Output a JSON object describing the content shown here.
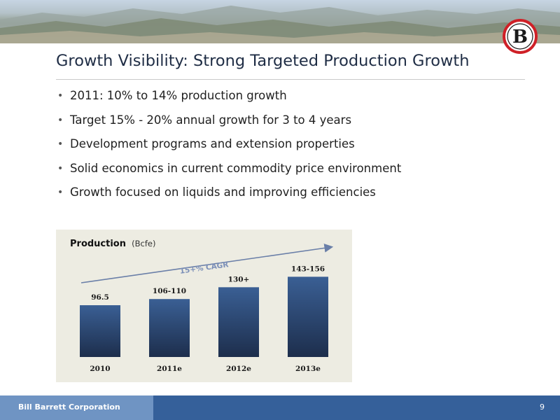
{
  "slide": {
    "title": "Growth Visibility: Strong Targeted Production Growth",
    "bullets": [
      "2011: 10% to 14% production growth",
      "Target 15% - 20% annual growth for 3 to 4 years",
      "Development programs and extension properties",
      "Solid economics in current commodity price environment",
      "Growth focused on liquids and improving efficiencies"
    ],
    "logo_letter": "B"
  },
  "chart_data": {
    "type": "bar",
    "title": "Production",
    "unit": "(Bcfe)",
    "categories": [
      "2010",
      "2011e",
      "2012e",
      "2013e"
    ],
    "values": [
      96.5,
      108,
      130,
      149.5
    ],
    "data_labels": [
      "96.5",
      "106-110",
      "130+",
      "143-156"
    ],
    "ylim": [
      0,
      160
    ],
    "annotation": "15+% CAGR",
    "grid": false,
    "colors": {
      "bar_top": "#3a5f94",
      "bar_bottom": "#1d2e4c",
      "panel": "#edece2",
      "arrow": "#6a7fa8",
      "annotation": "#7b8fb8"
    }
  },
  "footer": {
    "company": "Bill Barrett Corporation",
    "page_number": "9",
    "colors": {
      "left": "#6f94c3",
      "right": "#35609a"
    }
  }
}
